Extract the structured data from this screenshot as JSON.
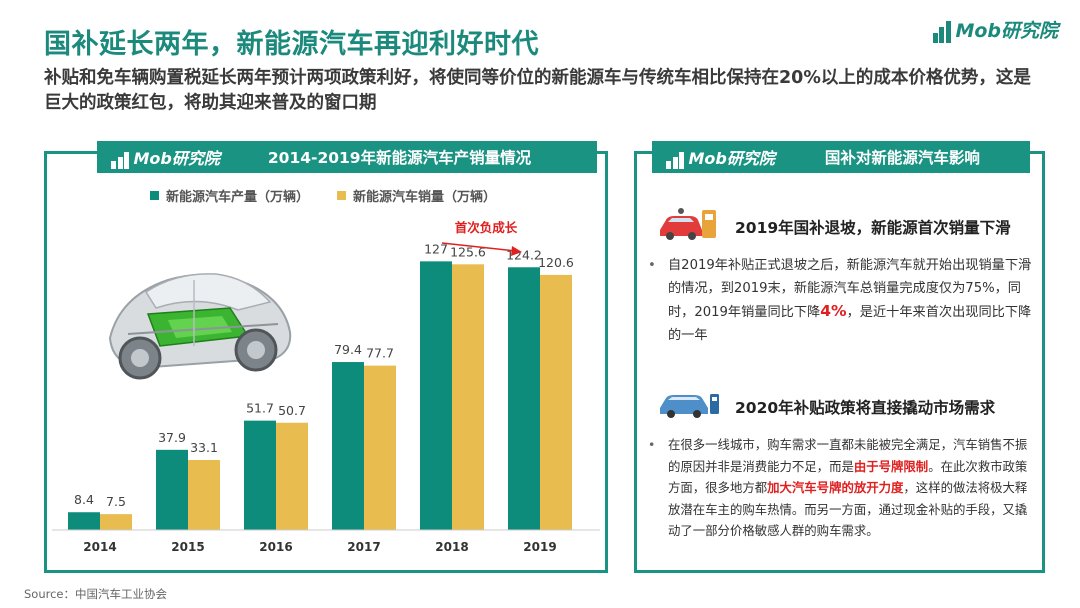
{
  "header": {
    "title": "国补延长两年，新能源汽车再迎利好时代",
    "subtitle": "补贴和免车辆购置税延长两年预计两项政策利好，将使同等价位的新能源车与传统车相比保持在20%以上的成本价格优势，这是巨大的政策红包，将助其迎来普及的窗口期",
    "logo_text": "Mob研究院"
  },
  "left_panel": {
    "logo_text": "Mob研究院",
    "title": "2014-2019年新能源汽车产销量情况"
  },
  "right_panel": {
    "logo_text": "Mob研究院",
    "title": "国补对新能源汽车影响",
    "section1": {
      "icon": "charging-car-icon",
      "title": "2019年国补退坡，新能源首次销量下滑",
      "text_a": "自2019年补贴正式退坡之后，新能源汽车就开始出现销量下滑的情况，到2019末，新能源汽车总销量完成度仅为75%，同时，2019年销量同比下降",
      "highlight": "4%",
      "text_b": "，是近十年来首次出现同比下降的一年"
    },
    "section2": {
      "icon": "ev-charging-icon",
      "title": "2020年补贴政策将直接撬动市场需求",
      "text_a": "在很多一线城市，购车需求一直都未能被完全满足，汽车销售不振的原因并非是消费能力不足，而是",
      "highlight_a": "由于号牌限制",
      "text_b": "。在此次救市政策方面，很多地方都",
      "highlight_b": "加大汽车号牌的放开力度",
      "text_c": "，这样的做法将极大释放潜在车主的购车热情。而另一方面，通过现金补贴的手段，又撬动了一部分价格敏感人群的购车需求。"
    }
  },
  "source": "Source：中国汽车工业协会",
  "colors": {
    "teal": "#1a9383",
    "production": "#0e8c7b",
    "sales": "#e8bc4e",
    "red": "#e02020"
  },
  "chart_data": {
    "type": "bar",
    "title": "2014-2019年新能源汽车产销量情况",
    "categories": [
      "2014",
      "2015",
      "2016",
      "2017",
      "2018",
      "2019"
    ],
    "series": [
      {
        "name": "新能源汽车产量（万辆）",
        "values": [
          8.4,
          37.9,
          51.7,
          79.4,
          127,
          124.2
        ]
      },
      {
        "name": "新能源汽车销量（万辆）",
        "values": [
          7.5,
          33.1,
          50.7,
          77.7,
          125.6,
          120.6
        ]
      }
    ],
    "value_labels": [
      [
        "8.4",
        "37.9",
        "51.7",
        "79.4",
        "127",
        "124.2"
      ],
      [
        "7.5",
        "33.1",
        "50.7",
        "77.7",
        "125.6",
        "120.6"
      ]
    ],
    "annotation": "首次负成长",
    "ylim": [
      0,
      130
    ],
    "legend_position": "top",
    "grid": false
  }
}
